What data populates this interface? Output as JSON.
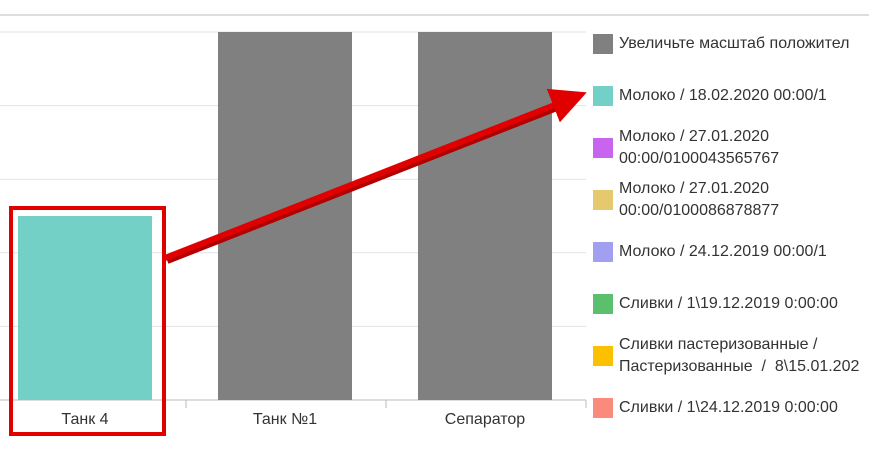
{
  "chart_data": {
    "type": "bar",
    "stacked": true,
    "categories": [
      "Танк 4",
      "Танк №1",
      "Сепаратор"
    ],
    "ylim": [
      0,
      5
    ],
    "yticks": [
      0,
      1,
      2,
      3,
      4,
      5
    ],
    "grid": true,
    "series": [
      {
        "name": "Увеличьте масштаб положител",
        "color": "#808080",
        "values": [
          null,
          5,
          5
        ]
      },
      {
        "name": "Молоко / 18.02.2020 00:00/1",
        "color": "#72d0c6",
        "values": [
          2.5,
          null,
          null
        ]
      },
      {
        "name": "Молоко / 27.01.2020\n00:00/0100043565767",
        "color": "#c864ee",
        "values": [
          null,
          null,
          null
        ]
      },
      {
        "name": "Молоко / 27.01.2020\n00:00/0100086878877",
        "color": "#e6c86e",
        "values": [
          null,
          null,
          null
        ]
      },
      {
        "name": "Молоко / 24.12.2019 00:00/1",
        "color": "#a09ff0",
        "values": [
          null,
          null,
          null
        ]
      },
      {
        "name": "Сливки / 1\\19.12.2019 0:00:00",
        "color": "#5cbf6d",
        "values": [
          null,
          null,
          null
        ]
      },
      {
        "name": "Сливки пастеризованные /\nПастеризованные  /  8\\15.01.202",
        "color": "#fcc000",
        "values": [
          null,
          null,
          null
        ]
      },
      {
        "name": "Сливки / 1\\24.12.2019 0:00:00",
        "color": "#f98a7c",
        "values": [
          null,
          null,
          null
        ]
      },
      {
        "name": "Сливки пастеризованные /",
        "values": [
          null,
          null,
          null
        ]
      }
    ]
  }
}
